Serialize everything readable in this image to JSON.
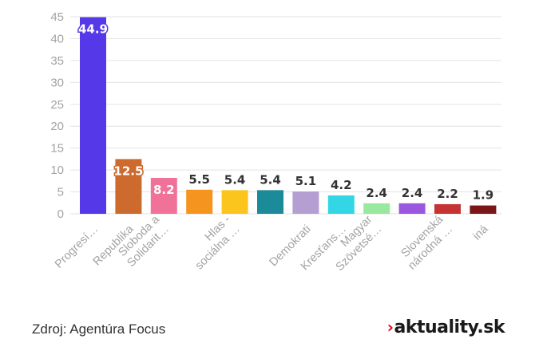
{
  "chart_data": {
    "type": "bar",
    "title": "",
    "xlabel": "",
    "ylabel": "",
    "ylim": [
      0,
      45
    ],
    "yticks": [
      0,
      5,
      10,
      15,
      20,
      25,
      30,
      35,
      40,
      45
    ],
    "grid": true,
    "categories": [
      [
        "Progresí…"
      ],
      [
        "Republika"
      ],
      [
        "Sloboda a",
        "Solidarit…"
      ],
      [
        "Hlas -",
        "sociálna …"
      ],
      [
        "Demokrati"
      ],
      [
        "Kresťans…"
      ],
      [
        "Magyar",
        "Szövetsé…"
      ],
      [
        "Slovenská",
        "národná …"
      ],
      [
        "iná"
      ]
    ],
    "values": [
      44.9,
      12.5,
      8.2,
      5.5,
      5.4,
      5.4,
      5.1,
      4.2,
      2.4,
      2.4,
      2.2,
      1.9
    ],
    "labels": [
      "44.9",
      "12.5",
      "8.2",
      "5.5",
      "5.4",
      "5.4",
      "5.1",
      "4.2",
      "2.4",
      "2.4",
      "2.2",
      "1.9"
    ],
    "colors": [
      "#5538e8",
      "#cd6a2e",
      "#f07298",
      "#f5951f",
      "#fbc51e",
      "#1b8a99",
      "#b59fd2",
      "#33d6e4",
      "#98e8a0",
      "#9a57e0",
      "#c53333",
      "#7b1518"
    ],
    "label_inside": [
      true,
      true,
      true,
      false,
      false,
      false,
      false,
      false,
      false,
      false,
      false,
      false
    ],
    "category_bar_index": [
      0,
      1,
      2,
      4,
      6,
      7,
      8,
      10,
      11
    ]
  },
  "footer": {
    "source": "Zdroj: Agentúra Focus",
    "brand_mark": "›",
    "brand": "aktuality.sk"
  }
}
